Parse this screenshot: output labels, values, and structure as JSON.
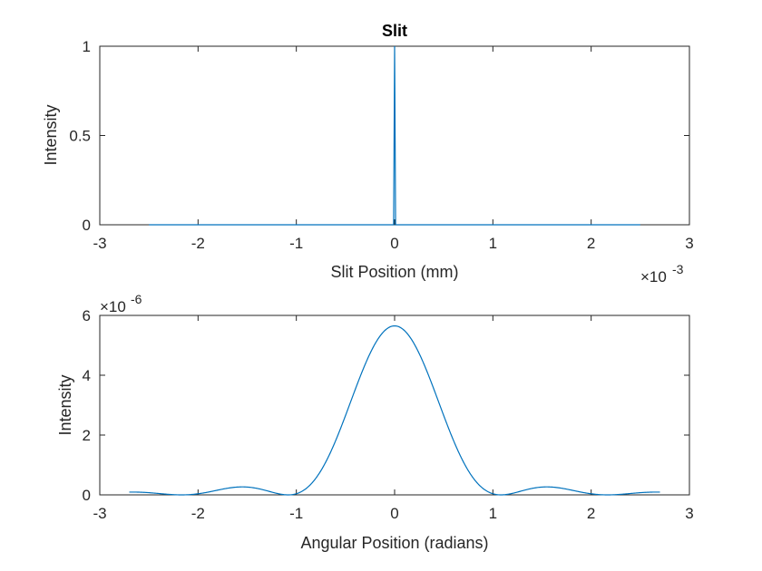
{
  "chart_data": [
    {
      "type": "line",
      "title": "Slit",
      "xlabel": "Slit Position (mm)",
      "ylabel": "Intensity",
      "xlim": [
        -3,
        3
      ],
      "ylim": [
        0,
        1
      ],
      "x_exponent_label": "×10",
      "x_exponent": "-3",
      "x_ticks": [
        -3,
        -2,
        -1,
        0,
        1,
        2,
        3
      ],
      "x_tick_labels": [
        "-3",
        "-2",
        "-1",
        "0",
        "1",
        "2",
        "3"
      ],
      "y_ticks": [
        0,
        0.5,
        1
      ],
      "y_tick_labels": [
        "0",
        "0.5",
        "1"
      ],
      "grid": false,
      "series": [
        {
          "color": "#0072BD",
          "x": [
            -2.5,
            -0.01,
            0,
            0.01,
            2.5
          ],
          "y": [
            0,
            0,
            1,
            0,
            0
          ]
        }
      ]
    },
    {
      "type": "line",
      "title": "",
      "xlabel": "Angular Position (radians)",
      "ylabel": "Intensity",
      "xlim": [
        -3,
        3
      ],
      "ylim": [
        0,
        6
      ],
      "y_exponent_label": "×10",
      "y_exponent": "-6",
      "x_ticks": [
        -3,
        -2,
        -1,
        0,
        1,
        2,
        3
      ],
      "x_tick_labels": [
        "-3",
        "-2",
        "-1",
        "0",
        "1",
        "2",
        "3"
      ],
      "y_ticks": [
        0,
        2,
        4,
        6
      ],
      "y_tick_labels": [
        "0",
        "2",
        "4",
        "6"
      ],
      "grid": false,
      "series": [
        {
          "color": "#0072BD",
          "peak": 5.65,
          "x_range": [
            -2.7,
            2.7
          ],
          "zero_spacing": 1.0833,
          "formula": "peak * sinc^2(pi * x / zero_spacing)"
        }
      ]
    }
  ]
}
